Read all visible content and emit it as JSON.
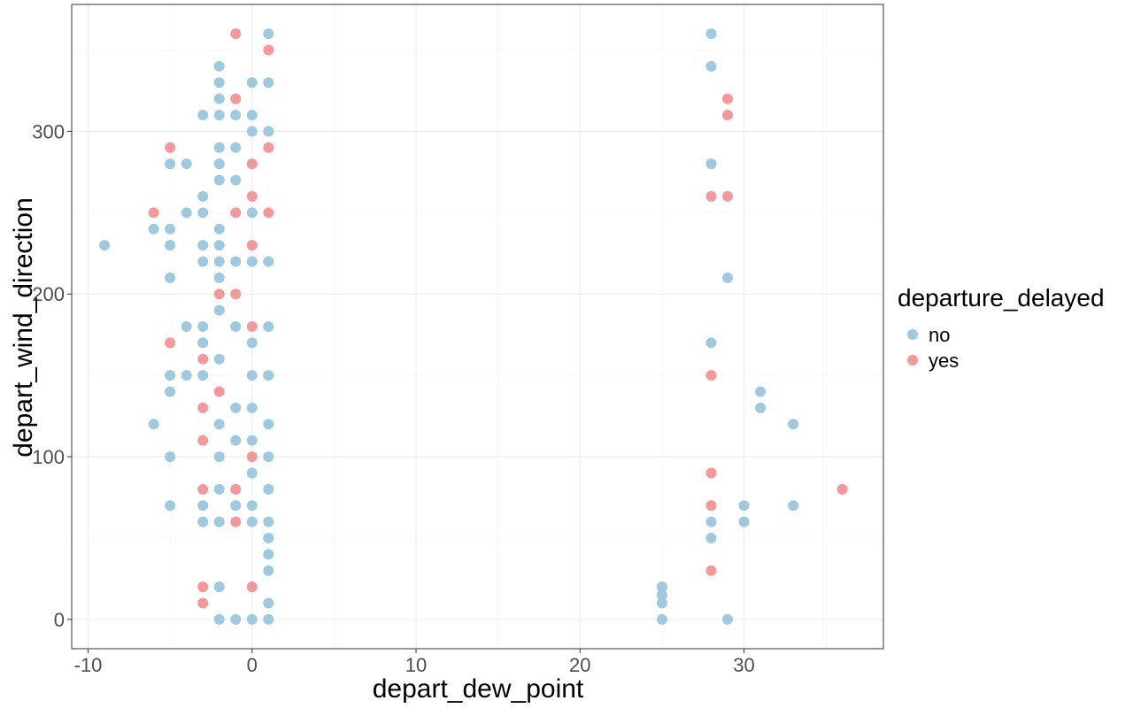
{
  "chart_data": {
    "type": "scatter",
    "title": "",
    "xlabel": "depart_dew_point",
    "ylabel": "depart_wind_direction",
    "xlim": [
      -11,
      38.5
    ],
    "ylim": [
      -18,
      378
    ],
    "x_ticks": [
      -10,
      0,
      10,
      20,
      30
    ],
    "y_ticks": [
      0,
      100,
      200,
      300
    ],
    "grid": true,
    "legend": {
      "title": "departure_delayed",
      "placement": "right",
      "entries": [
        {
          "label": "no",
          "color": "#9ecae1"
        },
        {
          "label": "yes",
          "color": "#f4989a"
        }
      ]
    },
    "series": [
      {
        "name": "no",
        "color": "#9ecae1",
        "points": [
          [
            -9,
            230
          ],
          [
            -6,
            240
          ],
          [
            -6,
            120
          ],
          [
            -5,
            280
          ],
          [
            -5,
            240
          ],
          [
            -5,
            230
          ],
          [
            -5,
            210
          ],
          [
            -5,
            150
          ],
          [
            -5,
            140
          ],
          [
            -5,
            100
          ],
          [
            -5,
            70
          ],
          [
            -4,
            280
          ],
          [
            -4,
            250
          ],
          [
            -4,
            180
          ],
          [
            -4,
            150
          ],
          [
            -3,
            310
          ],
          [
            -3,
            260
          ],
          [
            -3,
            250
          ],
          [
            -3,
            230
          ],
          [
            -3,
            220
          ],
          [
            -3,
            180
          ],
          [
            -3,
            170
          ],
          [
            -3,
            150
          ],
          [
            -3,
            70
          ],
          [
            -3,
            60
          ],
          [
            -2,
            340
          ],
          [
            -2,
            330
          ],
          [
            -2,
            320
          ],
          [
            -2,
            310
          ],
          [
            -2,
            290
          ],
          [
            -2,
            280
          ],
          [
            -2,
            270
          ],
          [
            -2,
            240
          ],
          [
            -2,
            230
          ],
          [
            -2,
            220
          ],
          [
            -2,
            210
          ],
          [
            -2,
            190
          ],
          [
            -2,
            160
          ],
          [
            -2,
            120
          ],
          [
            -2,
            100
          ],
          [
            -2,
            80
          ],
          [
            -2,
            60
          ],
          [
            -2,
            20
          ],
          [
            -2,
            0
          ],
          [
            -1,
            310
          ],
          [
            -1,
            290
          ],
          [
            -1,
            270
          ],
          [
            -1,
            220
          ],
          [
            -1,
            180
          ],
          [
            -1,
            130
          ],
          [
            -1,
            110
          ],
          [
            -1,
            70
          ],
          [
            -1,
            0
          ],
          [
            0,
            330
          ],
          [
            0,
            310
          ],
          [
            0,
            300
          ],
          [
            0,
            250
          ],
          [
            0,
            220
          ],
          [
            0,
            170
          ],
          [
            0,
            150
          ],
          [
            0,
            130
          ],
          [
            0,
            110
          ],
          [
            0,
            90
          ],
          [
            0,
            70
          ],
          [
            0,
            60
          ],
          [
            0,
            0
          ],
          [
            1,
            360
          ],
          [
            1,
            330
          ],
          [
            1,
            300
          ],
          [
            1,
            220
          ],
          [
            1,
            180
          ],
          [
            1,
            150
          ],
          [
            1,
            120
          ],
          [
            1,
            100
          ],
          [
            1,
            80
          ],
          [
            1,
            60
          ],
          [
            1,
            50
          ],
          [
            1,
            40
          ],
          [
            1,
            30
          ],
          [
            1,
            10
          ],
          [
            1,
            0
          ],
          [
            28,
            360
          ],
          [
            28,
            340
          ],
          [
            28,
            280
          ],
          [
            28,
            170
          ],
          [
            28,
            60
          ],
          [
            28,
            50
          ],
          [
            29,
            210
          ],
          [
            29,
            0
          ],
          [
            30,
            70
          ],
          [
            30,
            60
          ],
          [
            31,
            140
          ],
          [
            31,
            130
          ],
          [
            33,
            120
          ],
          [
            33,
            70
          ],
          [
            25,
            20
          ],
          [
            25,
            15
          ],
          [
            25,
            10
          ],
          [
            25,
            0
          ]
        ]
      },
      {
        "name": "yes",
        "color": "#f4989a",
        "points": [
          [
            -6,
            250
          ],
          [
            -5,
            290
          ],
          [
            -5,
            170
          ],
          [
            -3,
            160
          ],
          [
            -3,
            130
          ],
          [
            -3,
            110
          ],
          [
            -3,
            80
          ],
          [
            -3,
            20
          ],
          [
            -3,
            10
          ],
          [
            -2,
            200
          ],
          [
            -2,
            140
          ],
          [
            -1,
            360
          ],
          [
            -1,
            320
          ],
          [
            -1,
            250
          ],
          [
            -1,
            200
          ],
          [
            -1,
            80
          ],
          [
            -1,
            60
          ],
          [
            0,
            280
          ],
          [
            0,
            260
          ],
          [
            0,
            230
          ],
          [
            0,
            180
          ],
          [
            0,
            100
          ],
          [
            0,
            20
          ],
          [
            1,
            350
          ],
          [
            1,
            290
          ],
          [
            1,
            250
          ],
          [
            28,
            260
          ],
          [
            28,
            150
          ],
          [
            28,
            90
          ],
          [
            28,
            70
          ],
          [
            28,
            30
          ],
          [
            29,
            320
          ],
          [
            29,
            310
          ],
          [
            29,
            260
          ],
          [
            36,
            80
          ]
        ]
      }
    ]
  }
}
